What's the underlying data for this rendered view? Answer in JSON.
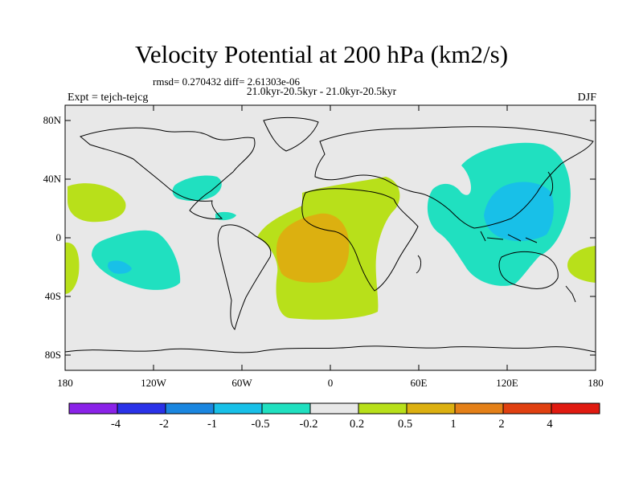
{
  "title": "Velocity Potential at 200 hPa (km2/s)",
  "stats": "rmsd= 0.270432 diff= 2.61303e-06",
  "period": "21.0kyr-20.5kyr - 21.0kyr-20.5kyr",
  "experiment": "Expt = tejch-tejcg",
  "season": "DJF",
  "lat_labels": [
    "80N",
    "40N",
    "0",
    "40S",
    "80S"
  ],
  "lon_labels": [
    "180",
    "120W",
    "60W",
    "0",
    "60E",
    "120E",
    "180"
  ],
  "colorbar": {
    "labels": [
      "-4",
      "-2",
      "-1",
      "-0.5",
      "-0.2",
      "0.2",
      "0.5",
      "1",
      "2",
      "4"
    ],
    "colors": [
      "#8a22e8",
      "#2a32e8",
      "#1a86e0",
      "#18c0e8",
      "#20e0c0",
      "#e8e8e8",
      "#b8e01a",
      "#dcb010",
      "#e48018",
      "#e04010",
      "#e01a10"
    ]
  },
  "field_colors": {
    "background": "#e8e8e8",
    "neg_0_2": "#20e0c0",
    "neg_0_5": "#18c0e8",
    "neg_1": "#1a86e0",
    "pos_0_2": "#b8e01a",
    "pos_0_5": "#dcb010"
  }
}
